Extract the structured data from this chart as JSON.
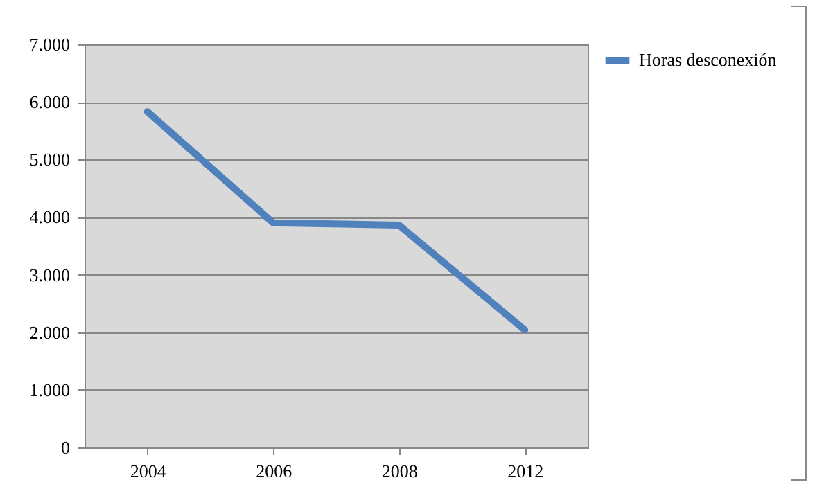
{
  "chart_data": {
    "type": "line",
    "categories": [
      "2004",
      "2006",
      "2008",
      "2012"
    ],
    "series": [
      {
        "name": "Horas desconexión",
        "color": "#4f81bd",
        "values": [
          5830,
          3900,
          3860,
          2040
        ]
      }
    ],
    "ylim": [
      0,
      7000
    ],
    "yticks": [
      0,
      {
        "value": 1000,
        "label": "1.000"
      },
      {
        "value": 2000,
        "label": "2.000"
      },
      {
        "value": 3000,
        "label": "3.000"
      },
      {
        "value": 4000,
        "label": "4.000"
      },
      {
        "value": 5000,
        "label": "5.000"
      },
      {
        "value": 6000,
        "label": "6.000"
      },
      {
        "value": 7000,
        "label": "7.000"
      }
    ],
    "grid": "y",
    "legend": "right",
    "marker": "none",
    "line_style": "solid"
  }
}
